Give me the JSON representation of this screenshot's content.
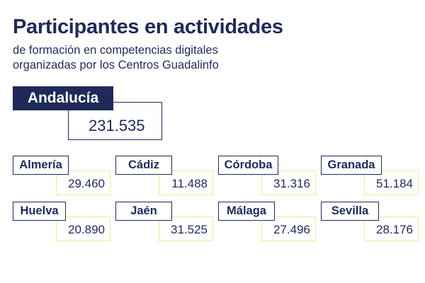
{
  "header": {
    "title": "Participantes en actividades",
    "subtitle_line1": "de formación en competencias digitales",
    "subtitle_line2": "organizadas por los Centros Guadalinfo"
  },
  "total": {
    "label": "Andalucía",
    "value": "231.535"
  },
  "provinces": [
    {
      "name": "Almería",
      "value": "29.460"
    },
    {
      "name": "Cádiz",
      "value": "11.488"
    },
    {
      "name": "Córdoba",
      "value": "31.316"
    },
    {
      "name": "Granada",
      "value": "51.184"
    },
    {
      "name": "Huelva",
      "value": "20.890"
    },
    {
      "name": "Jaén",
      "value": "31.525"
    },
    {
      "name": "Málaga",
      "value": "27.496"
    },
    {
      "name": "Sevilla",
      "value": "28.176"
    }
  ],
  "colors": {
    "navy": "#1f2a5a",
    "value_border": "#e6ef9a"
  }
}
